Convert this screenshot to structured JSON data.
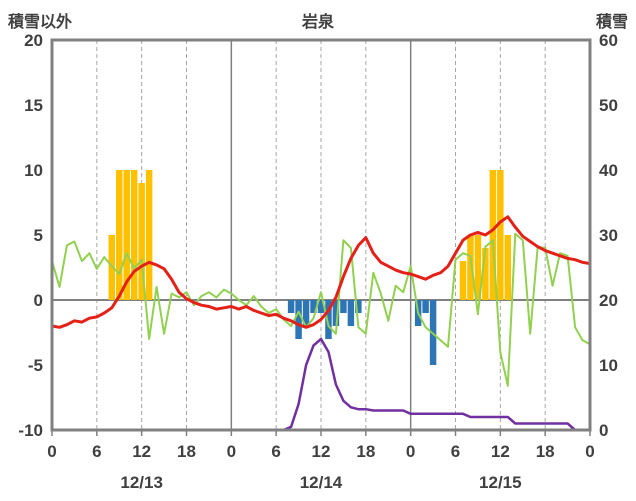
{
  "header": {
    "left_axis_title": "積雪以外",
    "title": "岩泉",
    "right_axis_title": "積雪"
  },
  "chart_data": {
    "type": "mixed",
    "title": "岩泉",
    "left_axis": {
      "title": "積雪以外",
      "min": -10,
      "max": 20,
      "ticks": [
        20,
        15,
        10,
        5,
        0,
        -5,
        -10
      ]
    },
    "right_axis": {
      "title": "積雪",
      "min": 0,
      "max": 60,
      "ticks": [
        60,
        50,
        40,
        30,
        20,
        10,
        0
      ]
    },
    "x_axis": {
      "total_hours": 72,
      "hour_tick_interval": 6,
      "hour_labels": [
        "0",
        "6",
        "12",
        "18",
        "0",
        "6",
        "12",
        "18",
        "0",
        "6",
        "12",
        "18",
        "0"
      ],
      "date_labels": [
        "12/13",
        "12/14",
        "12/15"
      ]
    },
    "grid": {
      "zero_line": true,
      "solid_day_lines": true,
      "dashed_six_hour_lines": true
    },
    "colors": {
      "precip_bar": "#FFC000",
      "snowfall_bar": "#2E75B6",
      "temperature_line": "#E32119",
      "wind_line": "#92D050",
      "snowdepth_line": "#7030A0",
      "grid": "#808080",
      "dashed_grid": "#A6A6A6",
      "text": "#404040"
    },
    "series": {
      "precipitation_bars": {
        "axis": "left",
        "points": [
          [
            8,
            5
          ],
          [
            9,
            10
          ],
          [
            10,
            10
          ],
          [
            11,
            10
          ],
          [
            12,
            9
          ],
          [
            13,
            10
          ],
          [
            55,
            3
          ],
          [
            56,
            5
          ],
          [
            57,
            5
          ],
          [
            58,
            4
          ],
          [
            59,
            10
          ],
          [
            60,
            10
          ],
          [
            61,
            5
          ]
        ]
      },
      "snowfall_bars": {
        "axis": "left",
        "points": [
          [
            32,
            -1
          ],
          [
            33,
            -3
          ],
          [
            34,
            -2
          ],
          [
            35,
            -1
          ],
          [
            36,
            -1
          ],
          [
            37,
            -3
          ],
          [
            38,
            -2
          ],
          [
            39,
            -1
          ],
          [
            40,
            -2
          ],
          [
            41,
            -1
          ],
          [
            49,
            -2
          ],
          [
            50,
            -1
          ],
          [
            51,
            -5
          ]
        ]
      },
      "temperature_line": {
        "axis": "left",
        "values": [
          -2.0,
          -2.1,
          -1.9,
          -1.6,
          -1.7,
          -1.4,
          -1.3,
          -1.0,
          -0.6,
          0.3,
          1.4,
          2.2,
          2.6,
          2.9,
          2.7,
          2.4,
          1.6,
          0.6,
          0.1,
          -0.2,
          -0.4,
          -0.5,
          -0.7,
          -0.6,
          -0.5,
          -0.7,
          -0.5,
          -0.8,
          -1.0,
          -1.2,
          -1.1,
          -1.4,
          -1.6,
          -1.9,
          -2.1,
          -1.9,
          -1.5,
          -0.8,
          0.2,
          1.8,
          3.2,
          4.2,
          4.8,
          3.6,
          2.9,
          2.6,
          2.3,
          2.1,
          2.0,
          1.8,
          1.6,
          1.9,
          2.1,
          2.6,
          3.6,
          4.6,
          5.0,
          5.2,
          5.0,
          5.4,
          6.0,
          6.4,
          5.6,
          4.9,
          4.5,
          4.1,
          3.8,
          3.6,
          3.4,
          3.2,
          3.1,
          2.9,
          2.8
        ]
      },
      "wind_line": {
        "axis": "left",
        "values": [
          3.0,
          1.0,
          4.2,
          4.5,
          3.0,
          3.6,
          2.4,
          3.3,
          2.6,
          2.0,
          3.6,
          2.4,
          3.1,
          -3.0,
          1.0,
          -2.6,
          0.5,
          0.2,
          0.6,
          -0.4,
          0.3,
          0.6,
          0.2,
          0.8,
          0.5,
          0.0,
          -0.4,
          0.3,
          -0.5,
          -1.0,
          -0.7,
          -1.5,
          -2.0,
          -0.9,
          -2.1,
          -1.4,
          0.6,
          -2.0,
          -2.6,
          4.6,
          4.0,
          -2.1,
          -2.6,
          2.1,
          0.5,
          -1.6,
          1.1,
          0.6,
          2.6,
          -1.0,
          -2.1,
          -2.6,
          -3.1,
          -3.6,
          3.1,
          3.6,
          3.4,
          -1.1,
          4.1,
          4.6,
          -4.0,
          -6.6,
          5.1,
          4.6,
          -2.6,
          4.1,
          4.0,
          1.1,
          3.6,
          3.4,
          -2.1,
          -3.1,
          -3.4
        ]
      },
      "snow_depth_line": {
        "axis": "right",
        "values": [
          null,
          null,
          null,
          null,
          null,
          null,
          null,
          null,
          null,
          null,
          null,
          null,
          null,
          null,
          null,
          null,
          null,
          null,
          null,
          null,
          null,
          null,
          null,
          null,
          0,
          0,
          0,
          0,
          0,
          0,
          0,
          0,
          0.5,
          4,
          10,
          13,
          14,
          12,
          7,
          4.5,
          3.5,
          3.2,
          3.2,
          3.0,
          3.0,
          3.0,
          3.0,
          3.0,
          2.5,
          2.5,
          2.5,
          2.5,
          2.5,
          2.5,
          2.5,
          2.5,
          2.0,
          2.0,
          2.0,
          2.0,
          2.0,
          2.0,
          1.0,
          1.0,
          1.0,
          1.0,
          1.0,
          1.0,
          1.0,
          1.0,
          0,
          0,
          0
        ]
      }
    }
  }
}
